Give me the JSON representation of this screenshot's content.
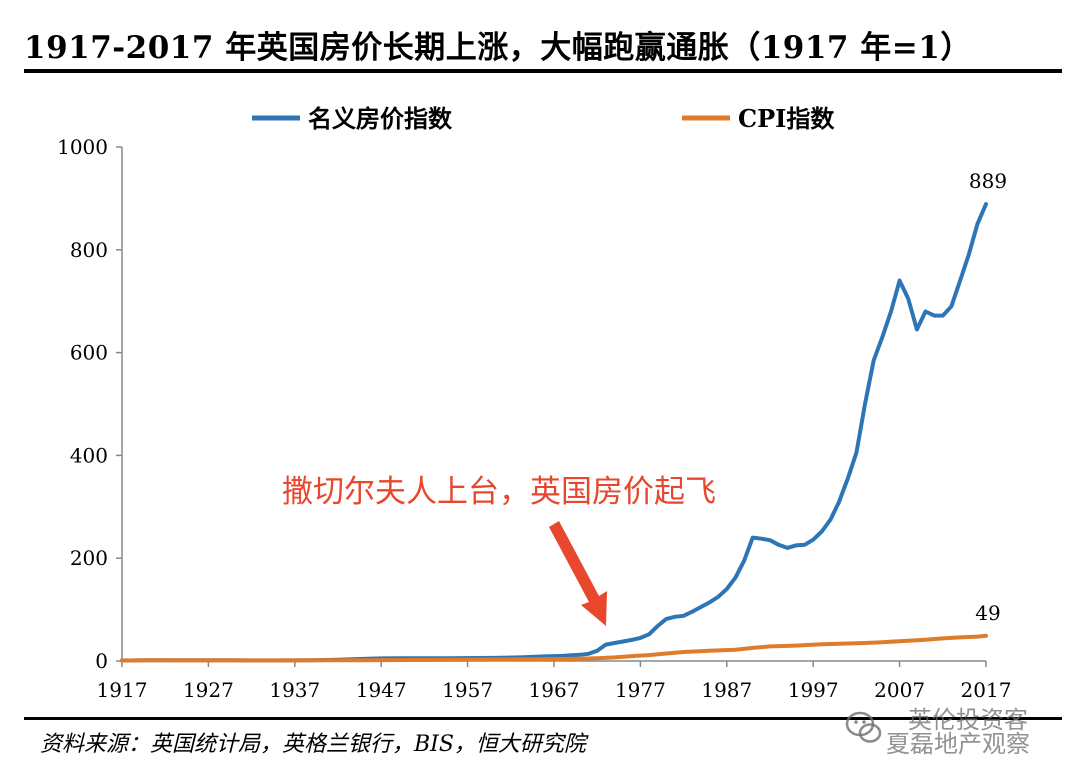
{
  "header": {
    "title": "1917-2017 年英国房价长期上涨，大幅跑赢通胀（1917 年=1）"
  },
  "footer": {
    "source": "资料来源：英国统计局，英格兰银行，BIS，恒大研究院"
  },
  "watermark": {
    "line1": "英伦投资客",
    "line2": "夏磊地产观察"
  },
  "colors": {
    "house": "#2e75b6",
    "cpi": "#e07b2a",
    "annotation": "#e8472e"
  },
  "chart_data": {
    "type": "line",
    "title": "1917-2017 年英国房价长期上涨，大幅跑赢通胀（1917 年=1）",
    "xlabel": "",
    "ylabel": "",
    "xlim": [
      1917,
      2017
    ],
    "ylim": [
      0,
      1000
    ],
    "x_ticks": [
      "1917",
      "1927",
      "1937",
      "1947",
      "1957",
      "1967",
      "1977",
      "1987",
      "1997",
      "2007",
      "2017"
    ],
    "y_ticks": [
      "0",
      "200",
      "400",
      "600",
      "800",
      "1000"
    ],
    "grid": false,
    "legend_position": "top",
    "series": [
      {
        "name": "名义房价指数",
        "color": "#2e75b6",
        "end_label": "889",
        "points": [
          [
            1917,
            1
          ],
          [
            1920,
            1.5
          ],
          [
            1925,
            1.4
          ],
          [
            1930,
            1.3
          ],
          [
            1935,
            1.2
          ],
          [
            1939,
            1.5
          ],
          [
            1942,
            2.5
          ],
          [
            1945,
            4
          ],
          [
            1947,
            5
          ],
          [
            1950,
            5.5
          ],
          [
            1955,
            5.5
          ],
          [
            1960,
            6
          ],
          [
            1963,
            7
          ],
          [
            1966,
            9
          ],
          [
            1968,
            10
          ],
          [
            1970,
            12
          ],
          [
            1971,
            14
          ],
          [
            1972,
            20
          ],
          [
            1973,
            32
          ],
          [
            1974,
            35
          ],
          [
            1975,
            38
          ],
          [
            1976,
            41
          ],
          [
            1977,
            45
          ],
          [
            1978,
            52
          ],
          [
            1979,
            68
          ],
          [
            1980,
            82
          ],
          [
            1981,
            86
          ],
          [
            1982,
            88
          ],
          [
            1983,
            96
          ],
          [
            1984,
            105
          ],
          [
            1985,
            114
          ],
          [
            1986,
            125
          ],
          [
            1987,
            140
          ],
          [
            1988,
            162
          ],
          [
            1989,
            195
          ],
          [
            1990,
            240
          ],
          [
            1991,
            238
          ],
          [
            1992,
            235
          ],
          [
            1993,
            226
          ],
          [
            1994,
            220
          ],
          [
            1995,
            225
          ],
          [
            1996,
            226
          ],
          [
            1997,
            236
          ],
          [
            1998,
            252
          ],
          [
            1999,
            275
          ],
          [
            2000,
            310
          ],
          [
            2001,
            355
          ],
          [
            2002,
            405
          ],
          [
            2003,
            500
          ],
          [
            2004,
            585
          ],
          [
            2005,
            630
          ],
          [
            2006,
            680
          ],
          [
            2007,
            740
          ],
          [
            2008,
            705
          ],
          [
            2009,
            645
          ],
          [
            2010,
            680
          ],
          [
            2011,
            672
          ],
          [
            2012,
            672
          ],
          [
            2013,
            690
          ],
          [
            2014,
            740
          ],
          [
            2015,
            790
          ],
          [
            2016,
            850
          ],
          [
            2017,
            889
          ]
        ]
      },
      {
        "name": "CPI指数",
        "color": "#e07b2a",
        "end_label": "49",
        "points": [
          [
            1917,
            1
          ],
          [
            1920,
            1.5
          ],
          [
            1925,
            1.2
          ],
          [
            1930,
            1.1
          ],
          [
            1935,
            1
          ],
          [
            1940,
            1.3
          ],
          [
            1945,
            1.6
          ],
          [
            1950,
            2
          ],
          [
            1955,
            2.5
          ],
          [
            1960,
            3
          ],
          [
            1965,
            3.5
          ],
          [
            1970,
            4.5
          ],
          [
            1972,
            5.5
          ],
          [
            1974,
            7
          ],
          [
            1976,
            9.5
          ],
          [
            1978,
            11.5
          ],
          [
            1980,
            14.5
          ],
          [
            1982,
            17.5
          ],
          [
            1985,
            20
          ],
          [
            1988,
            22
          ],
          [
            1990,
            25.5
          ],
          [
            1992,
            28.5
          ],
          [
            1995,
            30
          ],
          [
            1998,
            32.5
          ],
          [
            2000,
            33.5
          ],
          [
            2003,
            35
          ],
          [
            2005,
            36.5
          ],
          [
            2008,
            39.5
          ],
          [
            2010,
            41.5
          ],
          [
            2012,
            44
          ],
          [
            2014,
            46
          ],
          [
            2016,
            47.5
          ],
          [
            2017,
            49
          ]
        ]
      }
    ],
    "annotations": [
      {
        "text": "撒切尔夫人上台，英国房价起飞",
        "target": [
          1973,
          32
        ]
      }
    ]
  }
}
